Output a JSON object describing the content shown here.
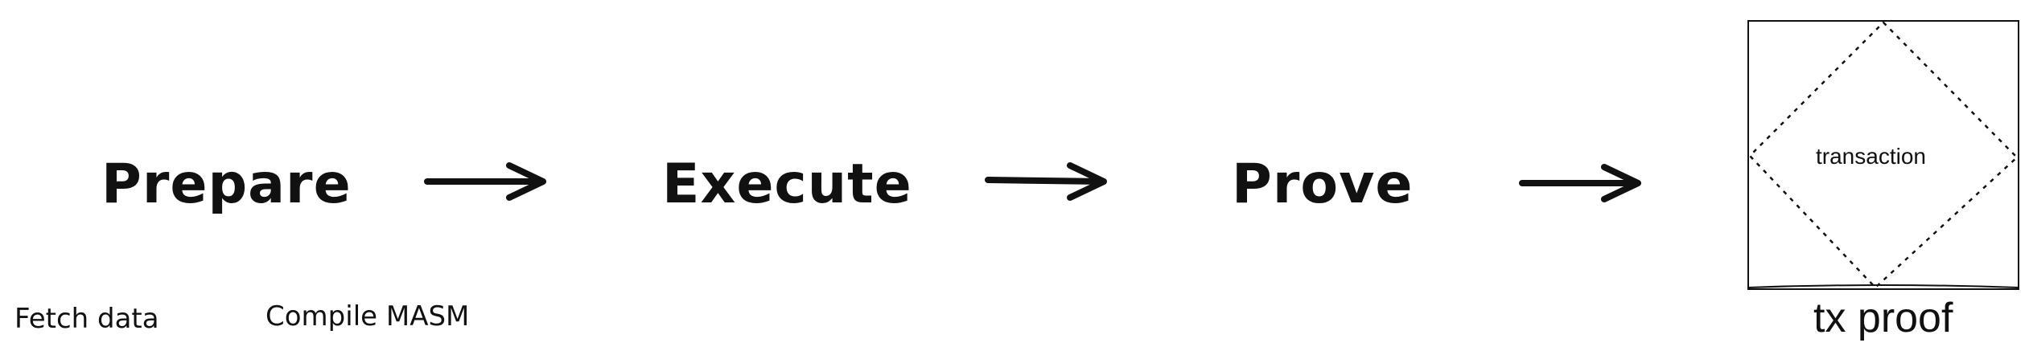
{
  "pipeline": {
    "stages": [
      {
        "label": "Prepare"
      },
      {
        "label": "Execute"
      },
      {
        "label": "Prove"
      }
    ],
    "notes": [
      {
        "label": "Fetch data"
      },
      {
        "label": "Compile MASM"
      }
    ]
  },
  "output": {
    "inner_label": "transaction",
    "caption": "tx proof"
  }
}
